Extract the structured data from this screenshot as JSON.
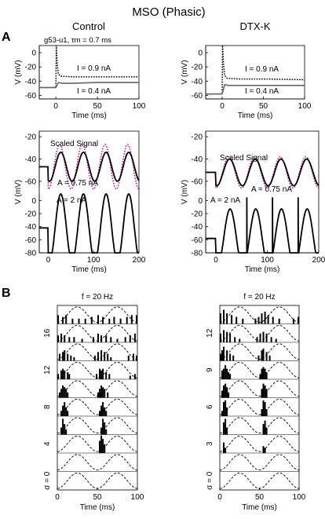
{
  "figure": {
    "title": "MSO (Phasic)",
    "panel_a": "A",
    "panel_b": "B",
    "col_control": "Control",
    "col_dtx": "DTX-K",
    "cell_id": "g53-u1, τm = 0.7 ms",
    "colors": {
      "trace": "#000000",
      "step_low": "#666666",
      "scaled": "#c0008c"
    }
  },
  "chart_data": [
    {
      "id": "ctrl-step",
      "type": "line",
      "panel": "A",
      "column": "Control",
      "xlabel": "Time (ms)",
      "ylabel": "V (mV)",
      "xlim": [
        -20,
        100
      ],
      "ylim": [
        -65,
        10
      ],
      "xticks": [
        0,
        50,
        100
      ],
      "yticks": [
        -60,
        -40,
        -20,
        0
      ],
      "series": [
        {
          "name": "I = 0.9 nA",
          "style": "dotted",
          "color": "#000000",
          "x": [
            -20,
            0,
            0.5,
            1.5,
            3,
            6,
            20,
            50,
            100
          ],
          "y": [
            -49,
            -49,
            10,
            -15,
            -30,
            -33,
            -34,
            -34,
            -34
          ]
        },
        {
          "name": "I = 0.4 nA",
          "style": "solid",
          "color": "#666666",
          "x": [
            -20,
            0,
            3,
            8,
            20,
            50,
            100
          ],
          "y": [
            -49,
            -49,
            -42,
            -43,
            -43,
            -42,
            -42
          ]
        }
      ]
    },
    {
      "id": "dtx-step",
      "type": "line",
      "panel": "A",
      "column": "DTX-K",
      "xlabel": "Time (ms)",
      "ylabel": "V (mV)",
      "xlim": [
        -20,
        100
      ],
      "ylim": [
        -65,
        10
      ],
      "xticks": [
        0,
        50,
        100
      ],
      "yticks": [
        -60,
        -40,
        -20,
        0
      ],
      "series": [
        {
          "name": "I = 0.9 nA",
          "style": "dotted",
          "color": "#000000",
          "x": [
            -20,
            0,
            0.5,
            1.5,
            3,
            6,
            20,
            50,
            100
          ],
          "y": [
            -58,
            -58,
            10,
            -15,
            -32,
            -36,
            -37,
            -37,
            -38
          ]
        },
        {
          "name": "I = 0.4 nA",
          "style": "solid",
          "color": "#666666",
          "x": [
            -20,
            0,
            3,
            8,
            20,
            50,
            100
          ],
          "y": [
            -58,
            -58,
            -45,
            -46,
            -46,
            -46,
            -46
          ]
        }
      ]
    },
    {
      "id": "ctrl-sine-small",
      "type": "line",
      "panel": "A",
      "column": "Control",
      "ylim": [
        -65,
        -15
      ],
      "yticks": [
        -60,
        -40,
        -20
      ],
      "series": [
        {
          "name": "Scaled Signal",
          "style": "dotted",
          "color": "#c0008c",
          "baseline": -47,
          "amplitude": 20,
          "period_ms": 50,
          "phase_ms": 12.5,
          "x": [
            -20,
            0,
            200
          ]
        },
        {
          "name": "A = 0.75 nA",
          "style": "solid",
          "color": "#000000",
          "baseline": -47,
          "amplitude": 13,
          "period_ms": 50,
          "phase_ms": 15,
          "x": [
            -20,
            0,
            200
          ]
        }
      ]
    },
    {
      "id": "ctrl-sine-large",
      "type": "line",
      "panel": "A",
      "column": "Control",
      "xlabel": "Time (ms)",
      "ylabel": "V (mV)",
      "xlim": [
        -20,
        200
      ],
      "ylim": [
        -80,
        10
      ],
      "xticks": [
        0,
        100,
        200
      ],
      "yticks": [
        -80,
        -60,
        -40,
        -20,
        0
      ],
      "series": [
        {
          "name": "A = 2 nA",
          "style": "solid",
          "color": "#000000",
          "baseline": -42,
          "amplitude": 52,
          "floor": -80,
          "period_ms": 50,
          "phase_ms": 15,
          "x": [
            -20,
            0,
            200
          ]
        }
      ]
    },
    {
      "id": "dtx-sine-small",
      "type": "line",
      "panel": "A",
      "column": "DTX-K",
      "ylim": [
        -65,
        -15
      ],
      "yticks": [
        -60,
        -40,
        -20
      ],
      "series": [
        {
          "name": "Scaled Signal",
          "style": "dotted",
          "color": "#c0008c",
          "baseline": -52,
          "amplitude": 14,
          "period_ms": 50,
          "phase_ms": 12.5,
          "x": [
            -20,
            0,
            200
          ]
        },
        {
          "name": "A = 0.75 nA",
          "style": "solid",
          "color": "#000000",
          "baseline": -52,
          "amplitude": 12,
          "period_ms": 50,
          "phase_ms": 14,
          "x": [
            -20,
            0,
            200
          ]
        }
      ]
    },
    {
      "id": "dtx-sine-large",
      "type": "line",
      "panel": "A",
      "column": "DTX-K",
      "xlabel": "Time (ms)",
      "ylabel": "V (mV)",
      "xlim": [
        -20,
        200
      ],
      "ylim": [
        -80,
        10
      ],
      "xticks": [
        0,
        100,
        200
      ],
      "yticks": [
        -80,
        -60,
        -40,
        -20,
        0
      ],
      "series": [
        {
          "name": "A = 2 nA",
          "style": "solid",
          "color": "#000000",
          "baseline": -58,
          "amplitude": 45,
          "floor": -80,
          "period_ms": 50,
          "phase_ms": 15,
          "spikes_ms": [
            60,
            110,
            160
          ],
          "spike_peak": 5,
          "x": [
            -20,
            0,
            200
          ]
        }
      ]
    },
    {
      "id": "ctrl-histograms",
      "type": "bar",
      "panel": "B",
      "column": "Control",
      "title": "f = 20 Hz",
      "xlabel": "Time (ms)",
      "xlim": [
        0,
        100
      ],
      "xticks": [
        0,
        50,
        100
      ],
      "row_labels": [
        "σ = 0",
        "",
        "4",
        "",
        "8",
        "",
        "12",
        "",
        "16",
        ""
      ],
      "rows": [
        {
          "bins": []
        },
        {
          "bins": []
        },
        {
          "bins": [
            [
              52,
              0.7
            ],
            [
              54,
              1.0
            ],
            [
              56,
              0.8
            ],
            [
              58,
              0.5
            ]
          ]
        },
        {
          "bins": [
            [
              4,
              0.4
            ],
            [
              6,
              0.9
            ],
            [
              8,
              0.6
            ],
            [
              10,
              0.3
            ],
            [
              54,
              0.4
            ],
            [
              56,
              0.9
            ],
            [
              58,
              0.7
            ],
            [
              60,
              0.3
            ]
          ]
        },
        {
          "bins": [
            [
              4,
              0.3
            ],
            [
              6,
              0.6
            ],
            [
              8,
              0.8
            ],
            [
              10,
              0.5
            ],
            [
              12,
              0.3
            ],
            [
              52,
              0.3
            ],
            [
              54,
              0.6
            ],
            [
              56,
              0.8
            ],
            [
              58,
              0.5
            ],
            [
              60,
              0.3
            ]
          ]
        },
        {
          "bins": [
            [
              2,
              0.3
            ],
            [
              4,
              0.5
            ],
            [
              6,
              0.7
            ],
            [
              8,
              0.6
            ],
            [
              10,
              0.5
            ],
            [
              12,
              0.3
            ],
            [
              50,
              0.3
            ],
            [
              52,
              0.5
            ],
            [
              54,
              0.7
            ],
            [
              56,
              0.6
            ],
            [
              58,
              0.5
            ],
            [
              62,
              0.3
            ]
          ]
        },
        {
          "bins": [
            [
              0,
              0.3
            ],
            [
              4,
              0.5
            ],
            [
              6,
              0.6
            ],
            [
              8,
              0.5
            ],
            [
              12,
              0.4
            ],
            [
              14,
              0.3
            ],
            [
              48,
              0.3
            ],
            [
              52,
              0.6
            ],
            [
              54,
              0.5
            ],
            [
              56,
              0.6
            ],
            [
              60,
              0.4
            ],
            [
              64,
              0.3
            ],
            [
              90,
              0.2
            ],
            [
              96,
              0.3
            ]
          ]
        },
        {
          "bins": [
            [
              2,
              0.4
            ],
            [
              6,
              0.5
            ],
            [
              8,
              0.6
            ],
            [
              12,
              0.4
            ],
            [
              16,
              0.3
            ],
            [
              20,
              0.2
            ],
            [
              46,
              0.3
            ],
            [
              50,
              0.5
            ],
            [
              54,
              0.6
            ],
            [
              58,
              0.5
            ],
            [
              62,
              0.4
            ],
            [
              66,
              0.2
            ],
            [
              88,
              0.3
            ],
            [
              94,
              0.4
            ],
            [
              98,
              0.3
            ]
          ]
        },
        {
          "bins": [
            [
              0,
              0.4
            ],
            [
              4,
              0.5
            ],
            [
              8,
              0.4
            ],
            [
              14,
              0.3
            ],
            [
              20,
              0.3
            ],
            [
              30,
              0.2
            ],
            [
              44,
              0.3
            ],
            [
              50,
              0.5
            ],
            [
              54,
              0.4
            ],
            [
              60,
              0.4
            ],
            [
              66,
              0.3
            ],
            [
              74,
              0.2
            ],
            [
              84,
              0.3
            ],
            [
              90,
              0.4
            ],
            [
              96,
              0.5
            ]
          ]
        },
        {
          "bins": [
            [
              0,
              0.5
            ],
            [
              6,
              0.4
            ],
            [
              10,
              0.5
            ],
            [
              18,
              0.3
            ],
            [
              26,
              0.3
            ],
            [
              34,
              0.3
            ],
            [
              42,
              0.4
            ],
            [
              50,
              0.5
            ],
            [
              56,
              0.4
            ],
            [
              64,
              0.3
            ],
            [
              70,
              0.4
            ],
            [
              78,
              0.3
            ],
            [
              86,
              0.4
            ],
            [
              92,
              0.5
            ],
            [
              98,
              0.5
            ]
          ]
        }
      ]
    },
    {
      "id": "dtx-histograms",
      "type": "bar",
      "panel": "B",
      "column": "DTX-K",
      "title": "f = 20 Hz",
      "xlabel": "Time (ms)",
      "xlim": [
        0,
        100
      ],
      "xticks": [
        0,
        50,
        100
      ],
      "row_labels": [
        "σ = 0",
        "",
        "3",
        "",
        "6",
        "",
        "9",
        "",
        "12",
        ""
      ],
      "rows": [
        {
          "bins": []
        },
        {
          "bins": []
        },
        {
          "bins": [
            [
              4,
              0.6
            ],
            [
              6,
              0.3
            ],
            [
              54,
              0.4
            ],
            [
              56,
              0.3
            ]
          ]
        },
        {
          "bins": [
            [
              4,
              0.7
            ],
            [
              6,
              0.9
            ],
            [
              8,
              0.4
            ],
            [
              54,
              0.6
            ],
            [
              56,
              0.8
            ],
            [
              58,
              0.4
            ]
          ]
        },
        {
          "bins": [
            [
              2,
              0.3
            ],
            [
              4,
              0.8
            ],
            [
              6,
              0.9
            ],
            [
              8,
              0.5
            ],
            [
              52,
              0.4
            ],
            [
              54,
              0.9
            ],
            [
              56,
              0.8
            ],
            [
              58,
              0.4
            ]
          ]
        },
        {
          "bins": [
            [
              2,
              0.4
            ],
            [
              4,
              0.7
            ],
            [
              6,
              0.8
            ],
            [
              8,
              0.6
            ],
            [
              10,
              0.3
            ],
            [
              52,
              0.5
            ],
            [
              54,
              0.8
            ],
            [
              56,
              0.7
            ],
            [
              58,
              0.5
            ]
          ]
        },
        {
          "bins": [
            [
              2,
              0.5
            ],
            [
              4,
              0.6
            ],
            [
              6,
              0.8
            ],
            [
              8,
              0.6
            ],
            [
              10,
              0.4
            ],
            [
              12,
              0.3
            ],
            [
              50,
              0.3
            ],
            [
              52,
              0.6
            ],
            [
              54,
              0.7
            ],
            [
              56,
              0.6
            ],
            [
              58,
              0.4
            ]
          ]
        },
        {
          "bins": [
            [
              0,
              0.4
            ],
            [
              2,
              0.6
            ],
            [
              4,
              0.8
            ],
            [
              8,
              0.6
            ],
            [
              12,
              0.4
            ],
            [
              16,
              0.3
            ],
            [
              48,
              0.3
            ],
            [
              52,
              0.6
            ],
            [
              54,
              0.7
            ],
            [
              58,
              0.5
            ],
            [
              62,
              0.3
            ]
          ]
        },
        {
          "bins": [
            [
              0,
              0.5
            ],
            [
              4,
              0.7
            ],
            [
              8,
              0.6
            ],
            [
              12,
              0.5
            ],
            [
              18,
              0.3
            ],
            [
              24,
              0.2
            ],
            [
              46,
              0.3
            ],
            [
              50,
              0.5
            ],
            [
              54,
              0.6
            ],
            [
              58,
              0.5
            ],
            [
              64,
              0.3
            ],
            [
              70,
              0.2
            ]
          ]
        },
        {
          "bins": [
            [
              0,
              0.6
            ],
            [
              4,
              0.8
            ],
            [
              8,
              0.6
            ],
            [
              14,
              0.5
            ],
            [
              20,
              0.4
            ],
            [
              28,
              0.3
            ],
            [
              44,
              0.3
            ],
            [
              48,
              0.4
            ],
            [
              52,
              0.6
            ],
            [
              56,
              0.7
            ],
            [
              60,
              0.5
            ],
            [
              66,
              0.4
            ],
            [
              74,
              0.3
            ],
            [
              92,
              0.3
            ],
            [
              98,
              0.4
            ]
          ]
        }
      ]
    }
  ]
}
